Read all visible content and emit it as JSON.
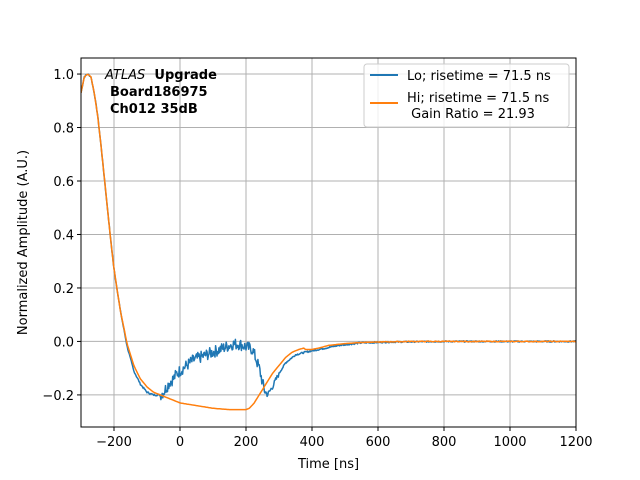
{
  "chart_data": {
    "type": "line",
    "xlabel": "Time [ns]",
    "ylabel": "Normalized Amplitude (A.U.)",
    "xlim": [
      -300,
      1200
    ],
    "ylim": [
      -0.32,
      1.06
    ],
    "x_ticks": [
      -200,
      0,
      200,
      400,
      600,
      800,
      1000,
      1200
    ],
    "x_tick_labels": [
      "−200",
      "0",
      "200",
      "400",
      "600",
      "800",
      "1000",
      "1200"
    ],
    "y_ticks": [
      -0.2,
      0.0,
      0.2,
      0.4,
      0.6,
      0.8,
      1.0
    ],
    "y_tick_labels": [
      "−0.2",
      "0.0",
      "0.2",
      "0.4",
      "0.6",
      "0.8",
      "1.0"
    ],
    "grid": true,
    "legend_position": "top-right",
    "annotation": {
      "line1_italic": "ATLAS",
      "line1_bold": "Upgrade",
      "line2": "Board186975",
      "line3": "Ch012 35dB"
    },
    "series": [
      {
        "name": "Lo; risetime = 71.5 ns",
        "color": "#1f77b4",
        "noisy": true,
        "x": [
          -300,
          -290,
          -280,
          -270,
          -260,
          -250,
          -240,
          -230,
          -220,
          -210,
          -200,
          -180,
          -160,
          -140,
          -120,
          -100,
          -80,
          -60,
          -50,
          -40,
          -30,
          -20,
          -10,
          0,
          20,
          40,
          60,
          80,
          100,
          120,
          140,
          160,
          180,
          200,
          220,
          240,
          255,
          265,
          280,
          300,
          320,
          350,
          380,
          420,
          480,
          550,
          650,
          800,
          1000,
          1200
        ],
        "y": [
          0.93,
          0.99,
          1.0,
          0.99,
          0.93,
          0.85,
          0.74,
          0.62,
          0.5,
          0.38,
          0.27,
          0.11,
          -0.02,
          -0.11,
          -0.16,
          -0.19,
          -0.2,
          -0.2,
          -0.19,
          -0.17,
          -0.15,
          -0.14,
          -0.12,
          -0.11,
          -0.09,
          -0.07,
          -0.06,
          -0.05,
          -0.04,
          -0.03,
          -0.02,
          -0.01,
          -0.01,
          -0.02,
          -0.03,
          -0.1,
          -0.18,
          -0.2,
          -0.17,
          -0.12,
          -0.08,
          -0.05,
          -0.04,
          -0.03,
          -0.015,
          -0.005,
          -0.002,
          0.0,
          0.0,
          0.0
        ]
      },
      {
        "name": "Hi; risetime = 71.5 ns\n Gain Ratio = 21.93",
        "color": "#ff7f0e",
        "noisy": false,
        "x": [
          -300,
          -290,
          -280,
          -270,
          -260,
          -250,
          -240,
          -230,
          -220,
          -210,
          -200,
          -180,
          -160,
          -140,
          -120,
          -100,
          -80,
          -60,
          -40,
          -20,
          0,
          50,
          100,
          150,
          200,
          210,
          225,
          240,
          260,
          280,
          300,
          320,
          340,
          360,
          375,
          380,
          400,
          420,
          450,
          500,
          550,
          600,
          700,
          800,
          1000,
          1200
        ],
        "y": [
          0.93,
          0.99,
          1.0,
          0.99,
          0.93,
          0.85,
          0.74,
          0.62,
          0.5,
          0.38,
          0.27,
          0.11,
          -0.01,
          -0.09,
          -0.14,
          -0.17,
          -0.19,
          -0.2,
          -0.21,
          -0.22,
          -0.23,
          -0.24,
          -0.25,
          -0.255,
          -0.255,
          -0.25,
          -0.23,
          -0.2,
          -0.16,
          -0.12,
          -0.09,
          -0.06,
          -0.04,
          -0.03,
          -0.025,
          -0.03,
          -0.03,
          -0.025,
          -0.015,
          -0.008,
          -0.004,
          -0.002,
          0.0,
          0.0,
          0.0,
          0.0
        ]
      }
    ]
  }
}
